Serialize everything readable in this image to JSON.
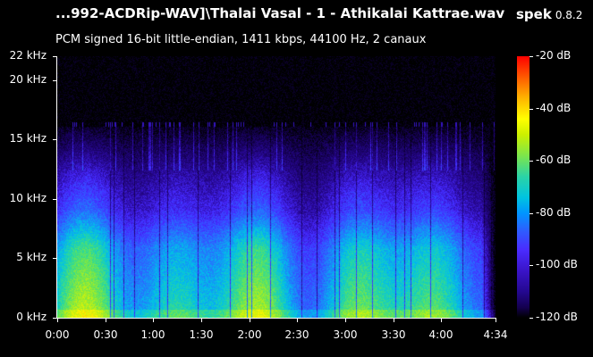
{
  "window": {
    "title": "...992-ACDRip-WAV]\\Thalai Vasal - 1 - Athikalai Kattrae.wav",
    "app_name": "spek",
    "app_version": "0.8.2",
    "file_info": "PCM signed 16-bit little-endian, 1411 kbps, 44100 Hz, 2 canaux"
  },
  "spectrogram": {
    "freq_axis": {
      "unit": "kHz",
      "max_khz": 22,
      "ticks": [
        {
          "value": 22,
          "label": "22 kHz"
        },
        {
          "value": 20,
          "label": "20 kHz"
        },
        {
          "value": 15,
          "label": "15 kHz"
        },
        {
          "value": 10,
          "label": "10 kHz"
        },
        {
          "value": 5,
          "label": "5 kHz"
        },
        {
          "value": 0,
          "label": "0 kHz"
        }
      ]
    },
    "time_axis": {
      "duration_seconds": 274,
      "ticks": [
        {
          "value": 0,
          "label": "0:00"
        },
        {
          "value": 30,
          "label": "0:30"
        },
        {
          "value": 60,
          "label": "1:00"
        },
        {
          "value": 90,
          "label": "1:30"
        },
        {
          "value": 120,
          "label": "2:00"
        },
        {
          "value": 150,
          "label": "2:30"
        },
        {
          "value": 180,
          "label": "3:00"
        },
        {
          "value": 210,
          "label": "3:30"
        },
        {
          "value": 240,
          "label": "4:00"
        },
        {
          "value": 274,
          "label": "4:34"
        }
      ]
    },
    "colorbar": {
      "min_db": -120,
      "max_db": -20,
      "ticks": [
        {
          "value": -20,
          "label": "-20 dB"
        },
        {
          "value": -40,
          "label": "-40 dB"
        },
        {
          "value": -60,
          "label": "-60 dB"
        },
        {
          "value": -80,
          "label": "-80 dB"
        },
        {
          "value": -100,
          "label": "-100 dB"
        },
        {
          "value": -120,
          "label": "-120 dB"
        }
      ]
    },
    "content_cutoff_khz": 16
  }
}
